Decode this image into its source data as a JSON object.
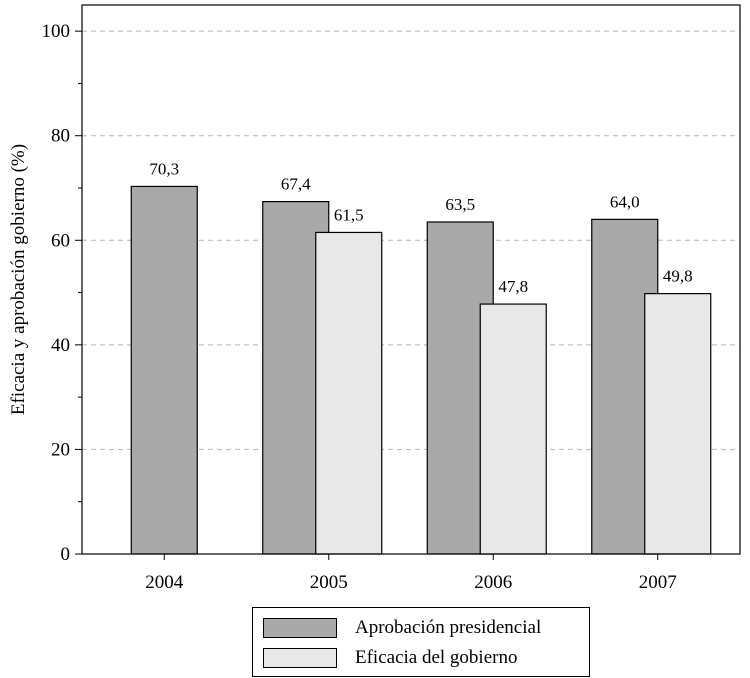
{
  "chart_data": {
    "type": "bar",
    "categories": [
      "2004",
      "2005",
      "2006",
      "2007"
    ],
    "series": [
      {
        "name": "Aprobación presidencial",
        "values": [
          70.3,
          67.4,
          63.5,
          64.0
        ],
        "labels": [
          "70,3",
          "67,4",
          "63,5",
          "64,0"
        ],
        "color": "#a9a9a9"
      },
      {
        "name": "Eficacia del gobierno",
        "values": [
          null,
          61.5,
          47.8,
          49.8
        ],
        "labels": [
          "",
          "61,5",
          "47,8",
          "49,8"
        ],
        "color": "#e8e8e8"
      }
    ],
    "title": "",
    "xlabel": "",
    "ylabel": "Eficacia y aprobación gobierno (%)",
    "ylim": [
      0,
      105
    ],
    "yticks": [
      "0",
      "20",
      "40",
      "60",
      "80",
      "100"
    ],
    "grid": "horizontal dashed at 20, 40, 60, 80",
    "legend_position": "bottom-center"
  }
}
